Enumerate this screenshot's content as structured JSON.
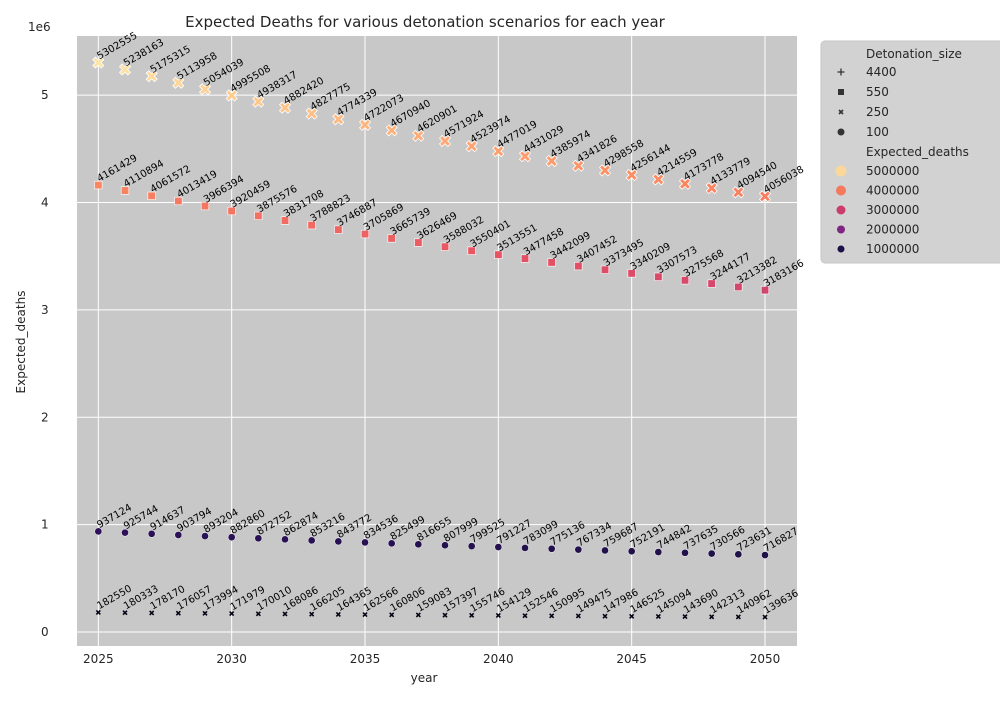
{
  "chart_data": {
    "type": "scatter",
    "title": "Expected Deaths for various detonation scenarios for each year",
    "xlabel": "year",
    "ylabel": "Expected_deaths",
    "y_scale_note": "1e6",
    "xlim": [
      2024.2,
      2051.2
    ],
    "ylim": [
      -130000,
      5550000
    ],
    "x_ticks": [
      2025,
      2030,
      2035,
      2040,
      2045,
      2050
    ],
    "y_ticks": [
      0,
      1000000,
      2000000,
      3000000,
      4000000,
      5000000
    ],
    "y_tick_labels": [
      "0",
      "1",
      "2",
      "3",
      "4",
      "5"
    ],
    "grid": true,
    "legend_position": "outside-right",
    "x": [
      2025,
      2026,
      2027,
      2028,
      2029,
      2030,
      2031,
      2032,
      2033,
      2034,
      2035,
      2036,
      2037,
      2038,
      2039,
      2040,
      2041,
      2042,
      2043,
      2044,
      2045,
      2046,
      2047,
      2048,
      2049,
      2050
    ],
    "series": [
      {
        "name": "4400",
        "marker": "X",
        "values": [
          5302555,
          5238163,
          5175315,
          5113958,
          5054039,
          4995508,
          4938317,
          4882420,
          4827775,
          4774339,
          4722073,
          4670940,
          4620901,
          4571924,
          4523974,
          4477019,
          4431029,
          4385974,
          4341826,
          4298558,
          4256144,
          4214559,
          4173778,
          4133779,
          4094540,
          4056038
        ]
      },
      {
        "name": "550",
        "marker": "s",
        "values": [
          4161429,
          4110894,
          4061572,
          4013419,
          3966394,
          3920459,
          3875576,
          3831708,
          3788823,
          3746887,
          3705869,
          3665739,
          3626469,
          3588032,
          3550401,
          3513551,
          3477458,
          3442099,
          3407452,
          3373495,
          3340209,
          3307573,
          3275568,
          3244177,
          3213382,
          3183166
        ]
      },
      {
        "name": "250",
        "marker": "o",
        "values": [
          937124,
          925744,
          914637,
          903794,
          893204,
          882860,
          872752,
          862874,
          853216,
          843772,
          834536,
          825499,
          816655,
          807999,
          799525,
          791227,
          783099,
          775136,
          767334,
          759687,
          752191,
          744842,
          737635,
          730566,
          723631,
          716827
        ]
      },
      {
        "name": "100",
        "marker": "x",
        "values": [
          182550,
          180333,
          178170,
          176057,
          173994,
          171979,
          170010,
          168086,
          166205,
          164365,
          162566,
          160806,
          159083,
          157397,
          155746,
          154129,
          152546,
          150995,
          149475,
          147986,
          146525,
          145094,
          143690,
          142313,
          140962,
          139636
        ]
      }
    ],
    "legend": {
      "size_title": "Detonation_size",
      "size_items": [
        {
          "label": "4400",
          "marker": "plus"
        },
        {
          "label": "550",
          "marker": "square"
        },
        {
          "label": "250",
          "marker": "x"
        },
        {
          "label": "100",
          "marker": "circle"
        }
      ],
      "deaths_title": "Expected_deaths",
      "deaths_items": [
        {
          "label": "5000000",
          "color": "#fbd89a"
        },
        {
          "label": "4000000",
          "color": "#f4795d"
        },
        {
          "label": "3000000",
          "color": "#cb3c6c"
        },
        {
          "label": "2000000",
          "color": "#7e2482"
        },
        {
          "label": "1000000",
          "color": "#1d1147"
        }
      ]
    },
    "colors": {
      "plot_background": "#c8c8c8",
      "grid": "#ffffff",
      "legend_background": "#d2d2d2",
      "color_scale": [
        "#000004",
        "#1d1147",
        "#51127c",
        "#822681",
        "#b73779",
        "#e75263",
        "#fc8961",
        "#fec488",
        "#fcfdbf"
      ]
    }
  }
}
